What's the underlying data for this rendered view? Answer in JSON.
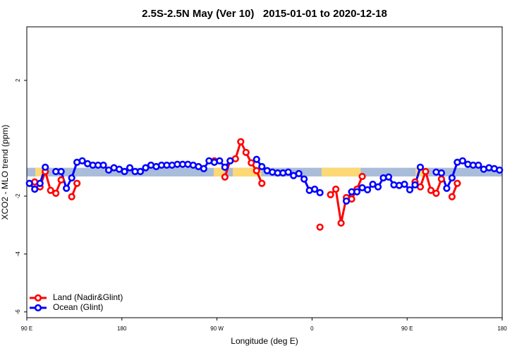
{
  "chart_data": {
    "type": "line",
    "title": "2.5S-2.5N May (Ver 10)   2015-01-01 to 2020-12-18",
    "x_label": "Longitude (deg E)",
    "y_label": "XCO2 - MLO trend (ppm)",
    "xlim": [
      90,
      540
    ],
    "ylim": [
      -6.2,
      3.85
    ],
    "xticks": [
      {
        "value": 90,
        "label": "90 E"
      },
      180,
      {
        "value": 270,
        "label": "90 W"
      },
      {
        "value": 360,
        "label": "0"
      },
      {
        "value": 450,
        "label": "90 E"
      },
      {
        "value": 540,
        "label": "180"
      }
    ],
    "yticks": [
      -6,
      -4,
      -2,
      2
    ],
    "legend": "bottom-left",
    "band": {
      "ylim": [
        -1.32,
        -1.02
      ],
      "color": "#a9bcd9",
      "highlights": [
        {
          "x": [
            98,
            108
          ],
          "color": "#fcd975"
        },
        {
          "x": [
            267,
            277
          ],
          "color": "#fcd975"
        },
        {
          "x": [
            285,
            312
          ],
          "color": "#fcd975"
        },
        {
          "x": [
            369,
            406
          ],
          "color": "#fcd975"
        },
        {
          "x": [
            458,
            466
          ],
          "color": "#fcd975"
        }
      ]
    },
    "x": [
      92.5,
      97.5,
      102.5,
      107.5,
      112.5,
      117.5,
      122.5,
      127.5,
      132.5,
      137.5,
      142.5,
      147.5,
      152.5,
      157.5,
      162.5,
      167.5,
      172.5,
      177.5,
      182.5,
      187.5,
      192.5,
      197.5,
      202.5,
      207.5,
      212.5,
      217.5,
      222.5,
      227.5,
      232.5,
      237.5,
      242.5,
      247.5,
      252.5,
      257.5,
      262.5,
      267.5,
      272.5,
      277.5,
      282.5,
      287.5,
      292.5,
      297.5,
      302.5,
      307.5,
      312.5,
      317.5,
      322.5,
      327.5,
      332.5,
      337.5,
      342.5,
      347.5,
      352.5,
      357.5,
      362.5,
      367.5,
      372.5,
      377.5,
      382.5,
      387.5,
      392.5,
      397.5,
      402.5,
      407.5,
      412.5,
      417.5,
      422.5,
      427.5,
      432.5,
      437.5,
      442.5,
      447.5,
      452.5,
      457.5,
      462.5,
      467.5,
      472.5,
      477.5,
      482.5,
      487.5,
      492.5,
      497.5,
      502.5,
      507.5,
      512.5,
      517.5,
      522.5,
      527.5,
      532.5,
      537.5
    ],
    "series": [
      {
        "name": "Land (Nadir&Glint)",
        "color": "#ff0000",
        "values": [
          null,
          -1.51,
          -1.68,
          -1.15,
          -1.8,
          -1.9,
          -1.44,
          null,
          -2.02,
          -1.56,
          null,
          null,
          null,
          null,
          null,
          null,
          null,
          null,
          null,
          null,
          null,
          null,
          null,
          null,
          null,
          null,
          null,
          null,
          null,
          null,
          null,
          null,
          null,
          null,
          null,
          -0.78,
          null,
          -1.34,
          -0.78,
          -0.71,
          -0.12,
          -0.49,
          -0.85,
          -1.12,
          -1.56,
          null,
          null,
          null,
          null,
          null,
          null,
          null,
          null,
          null,
          null,
          -3.07,
          null,
          -1.95,
          -1.76,
          -2.93,
          -2.05,
          -2.1,
          -1.76,
          -1.32,
          null,
          null,
          null,
          null,
          null,
          null,
          null,
          null,
          null,
          -1.51,
          -1.68,
          -1.15,
          -1.8,
          -1.9,
          -1.41,
          null,
          -2.02,
          -1.56,
          null,
          null,
          null,
          null,
          null,
          null,
          null,
          null
        ]
      },
      {
        "name": "Ocean (Glint)",
        "color": "#0000ff",
        "values": [
          -1.56,
          -1.76,
          -1.56,
          -1.0,
          null,
          -1.15,
          -1.15,
          -1.73,
          -1.37,
          -0.83,
          -0.78,
          -0.88,
          -0.93,
          -0.93,
          -0.93,
          -1.1,
          -1.02,
          -1.07,
          -1.15,
          -1.02,
          -1.15,
          -1.15,
          -1.02,
          -0.93,
          -0.98,
          -0.93,
          -0.93,
          -0.93,
          -0.9,
          -0.9,
          -0.9,
          -0.93,
          -0.98,
          -1.05,
          -0.78,
          -0.83,
          -0.78,
          -1.0,
          -0.78,
          null,
          null,
          null,
          null,
          -0.73,
          -0.98,
          -1.12,
          -1.17,
          -1.2,
          -1.2,
          -1.17,
          -1.29,
          -1.22,
          -1.41,
          -1.8,
          -1.76,
          -1.88,
          null,
          null,
          null,
          null,
          -2.17,
          -1.85,
          -1.85,
          -1.71,
          -1.78,
          -1.59,
          -1.68,
          -1.37,
          -1.34,
          -1.61,
          -1.63,
          -1.59,
          -1.78,
          -1.61,
          -1.0,
          null,
          null,
          -1.17,
          -1.2,
          -1.73,
          -1.37,
          -0.83,
          -0.78,
          -0.9,
          -0.93,
          -0.93,
          -1.07,
          -1.02,
          -1.05,
          -1.1
        ]
      }
    ]
  }
}
